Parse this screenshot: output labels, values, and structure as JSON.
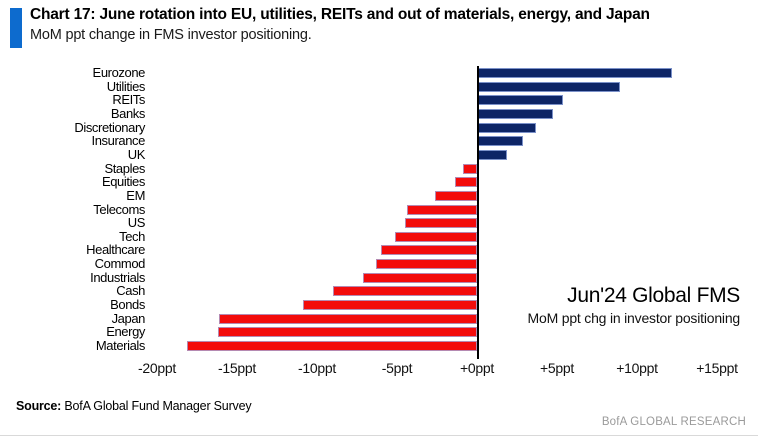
{
  "header": {
    "title": "Chart 17: June rotation into EU, utilities, REITs and out of materials, energy, and Japan",
    "subtitle": "MoM ppt change in FMS investor positioning.",
    "accent_color": "#0d6bce"
  },
  "chart_data": {
    "type": "bar",
    "orientation": "horizontal",
    "title": "Chart 17: June rotation into EU, utilities, REITs and out of materials, energy, and Japan",
    "subtitle": "MoM ppt change in FMS investor positioning.",
    "categories": [
      "Eurozone",
      "Utilities",
      "REITs",
      "Banks",
      "Discretionary",
      "Insurance",
      "UK",
      "Staples",
      "Equities",
      "EM",
      "Telecoms",
      "US",
      "Tech",
      "Healthcare",
      "Commod",
      "Industrials",
      "Cash",
      "Bonds",
      "Japan",
      "Energy",
      "Materials"
    ],
    "values": [
      12.1,
      8.9,
      5.3,
      4.7,
      3.6,
      2.8,
      1.8,
      -0.9,
      -1.4,
      -2.6,
      -4.4,
      -4.5,
      -5.1,
      -6.0,
      -6.3,
      -7.1,
      -9.0,
      -10.9,
      -16.1,
      -16.2,
      -18.1
    ],
    "unit": "ppt",
    "xlim": [
      -22,
      17.5
    ],
    "x_ticks": [
      -20,
      -15,
      -10,
      -5,
      0,
      5,
      10,
      15
    ],
    "x_tick_labels": [
      "-20ppt",
      "-15ppt",
      "-10ppt",
      "-5ppt",
      "+0ppt",
      "+5ppt",
      "+10ppt",
      "+15ppt"
    ],
    "positive_color": "#0d2566",
    "negative_color": "#f30b0b",
    "grid": false,
    "legend": false,
    "annotation_title": "Jun'24 Global FMS",
    "annotation_subtitle": "MoM ppt chg in investor positioning"
  },
  "footer": {
    "source_label": "Source:",
    "source_text": " BofA Global Fund Manager Survey",
    "brand": "BofA GLOBAL RESEARCH"
  }
}
